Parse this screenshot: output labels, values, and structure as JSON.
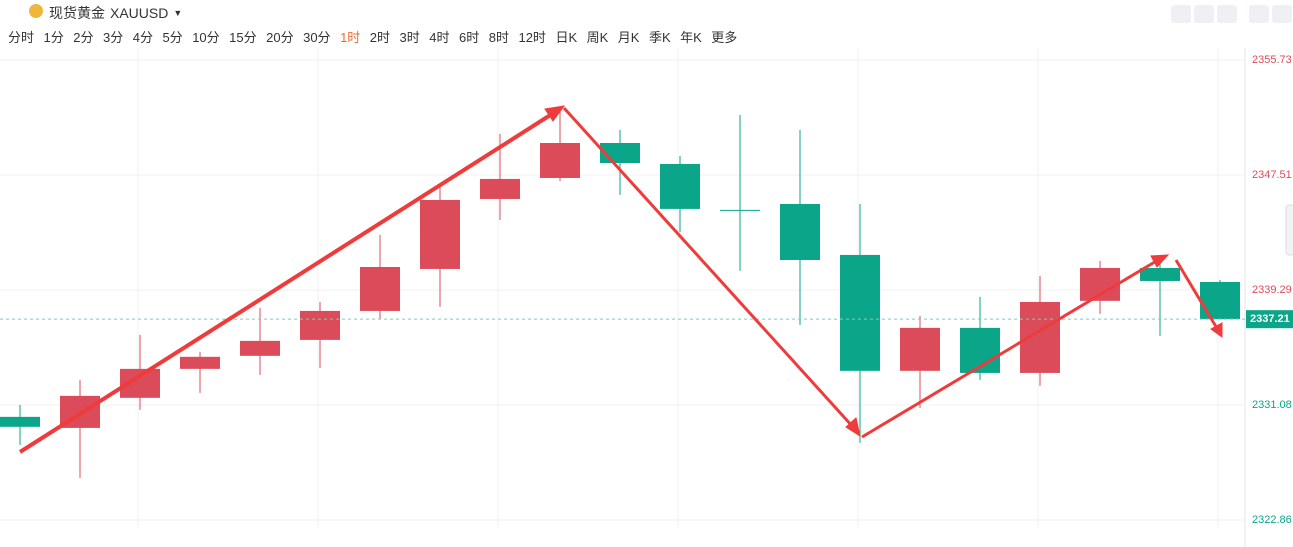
{
  "toolbar": {
    "name": "现货黄金",
    "symbol": "XAUUSD",
    "intervals": [
      "分时",
      "1分",
      "2分",
      "3分",
      "4分",
      "5分",
      "10分",
      "15分",
      "20分",
      "30分",
      "1时",
      "2时",
      "3时",
      "4时",
      "6时",
      "8时",
      "12时",
      "日K",
      "周K",
      "月K",
      "季K",
      "年K",
      "更多"
    ],
    "selected": "1时"
  },
  "chart_data": {
    "type": "candlestick",
    "series": [
      {
        "name": "open",
        "values": [
          2330.23,
          2329.44,
          2331.59,
          2333.66,
          2334.59,
          2335.73,
          2337.8,
          2340.8,
          2345.8,
          2347.3,
          2349.8,
          2348.3,
          2345.02,
          2345.44,
          2341.8,
          2333.52,
          2336.59,
          2333.37,
          2338.52,
          2340.87,
          2339.87
        ]
      },
      {
        "name": "high",
        "values": [
          2331.09,
          2332.87,
          2336.09,
          2334.87,
          2338.02,
          2338.44,
          2343.23,
          2346.94,
          2350.44,
          2352.3,
          2350.73,
          2348.87,
          2351.8,
          2350.73,
          2345.44,
          2337.44,
          2338.8,
          2340.3,
          2341.37,
          2341.3,
          2340.02
        ]
      },
      {
        "name": "low",
        "values": [
          2328.23,
          2325.87,
          2330.73,
          2331.94,
          2333.23,
          2333.73,
          2337.23,
          2338.09,
          2344.3,
          2347.09,
          2346.09,
          2343.44,
          2340.66,
          2336.8,
          2328.37,
          2330.87,
          2332.87,
          2332.44,
          2337.59,
          2336.02,
          2337.21
        ]
      },
      {
        "name": "close",
        "values": [
          2329.52,
          2331.73,
          2333.66,
          2334.52,
          2335.66,
          2337.8,
          2340.94,
          2345.73,
          2347.23,
          2349.8,
          2348.37,
          2345.09,
          2344.95,
          2341.44,
          2333.52,
          2336.59,
          2333.37,
          2338.44,
          2340.87,
          2339.94,
          2337.21
        ]
      }
    ],
    "up_color": "#dc4b5a",
    "down_color": "#0ba68a",
    "ylim": [
      2322.86,
      2355.73
    ],
    "yticks": [
      2322.86,
      2331.08,
      2339.29,
      2347.51,
      2355.73
    ],
    "current_price": 2337.21,
    "grid": true
  }
}
